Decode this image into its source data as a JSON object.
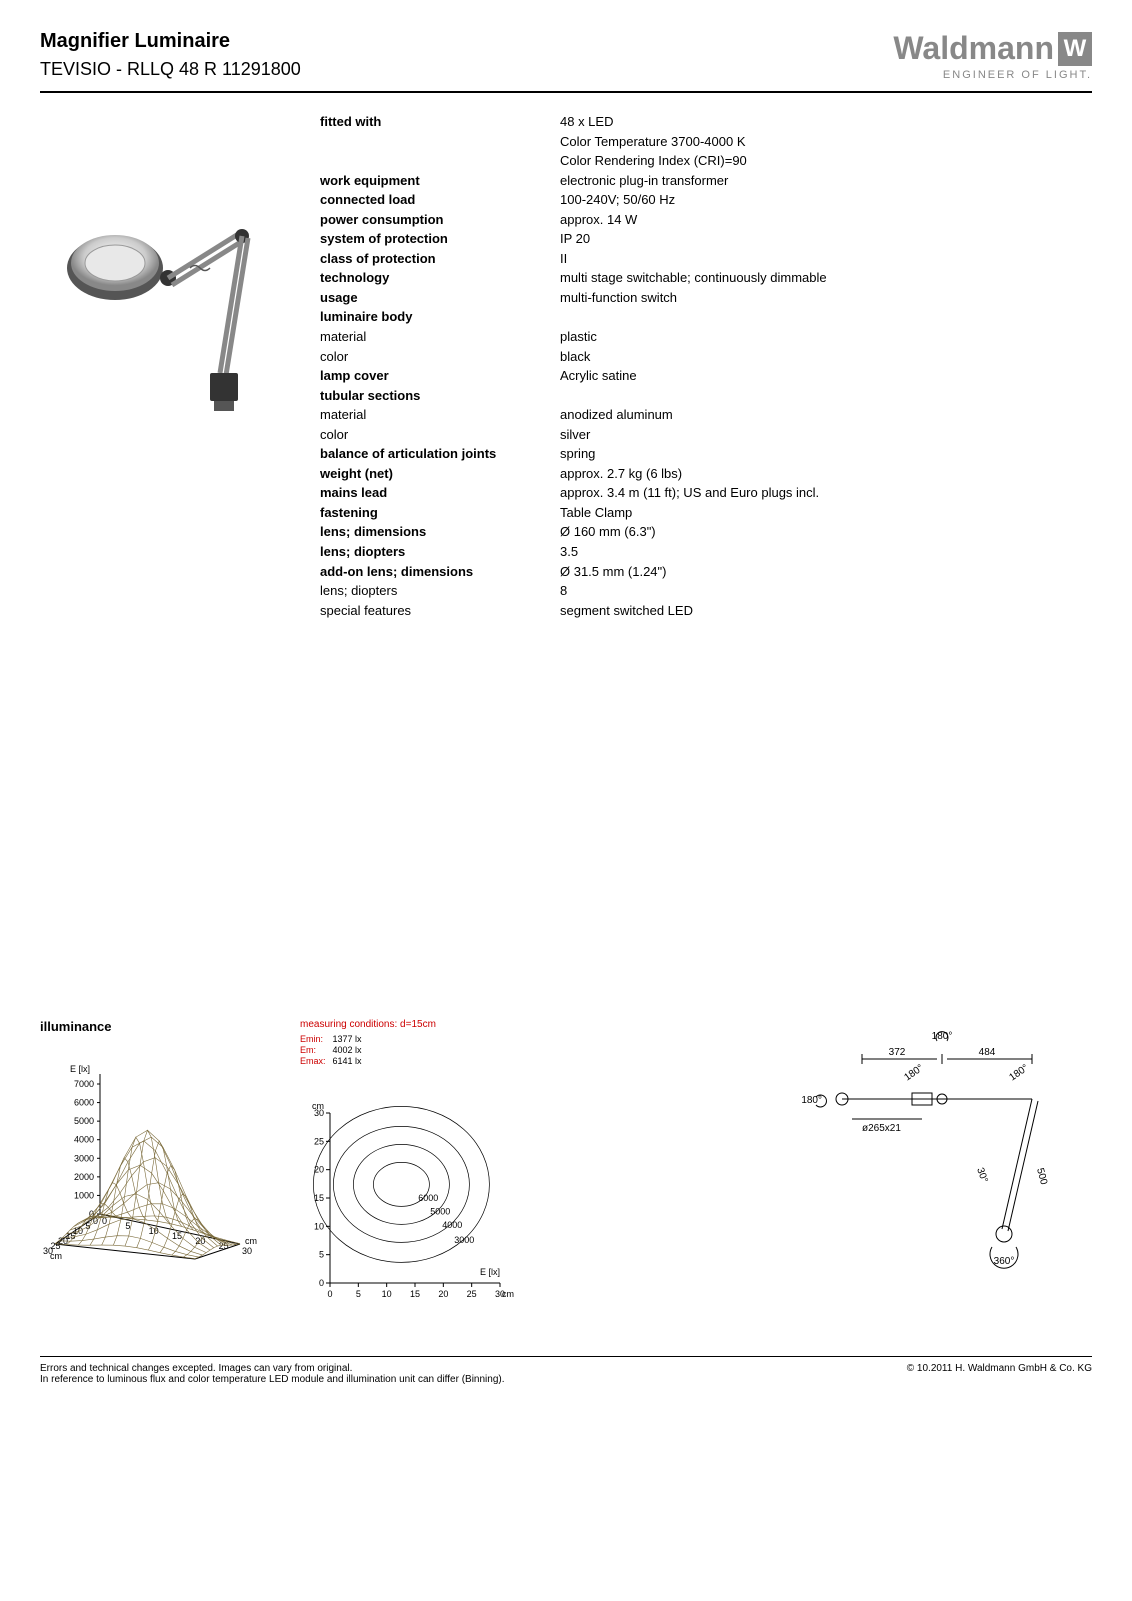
{
  "header": {
    "title": "Magnifier Luminaire",
    "subtitle": "TEVISIO - RLLQ 48 R    11291800"
  },
  "logo": {
    "name": "Waldmann",
    "mark": "W",
    "tagline": "ENGINEER OF LIGHT."
  },
  "specs": [
    {
      "label": "fitted with",
      "bold": true,
      "value": "48 x LED"
    },
    {
      "label": "",
      "bold": false,
      "value": "Color Temperature 3700-4000 K"
    },
    {
      "label": "",
      "bold": false,
      "value": "Color Rendering Index (CRI)=90"
    },
    {
      "label": "work equipment",
      "bold": true,
      "value": "electronic plug-in transformer"
    },
    {
      "label": "connected load",
      "bold": true,
      "value": "100-240V; 50/60 Hz"
    },
    {
      "label": "power consumption",
      "bold": true,
      "value": "approx. 14 W"
    },
    {
      "label": "system of protection",
      "bold": true,
      "value": "IP 20"
    },
    {
      "label": "class of protection",
      "bold": true,
      "value": "II"
    },
    {
      "label": "technology",
      "bold": true,
      "value": "multi stage switchable; continuously dimmable"
    },
    {
      "label": "usage",
      "bold": true,
      "value": "multi-function switch"
    },
    {
      "label": "luminaire body",
      "bold": true,
      "value": ""
    },
    {
      "label": "material",
      "bold": false,
      "value": "plastic"
    },
    {
      "label": "color",
      "bold": false,
      "value": "black"
    },
    {
      "label": "lamp cover",
      "bold": true,
      "value": "Acrylic satine"
    },
    {
      "label": "tubular sections",
      "bold": true,
      "value": ""
    },
    {
      "label": "material",
      "bold": false,
      "value": "anodized aluminum"
    },
    {
      "label": "color",
      "bold": false,
      "value": "silver"
    },
    {
      "label": "balance of articulation joints",
      "bold": true,
      "value": "spring"
    },
    {
      "label": "weight (net)",
      "bold": true,
      "value": "approx. 2.7 kg (6 lbs)"
    },
    {
      "label": "mains lead",
      "bold": true,
      "value": "approx. 3.4 m (11 ft); US and Euro plugs incl."
    },
    {
      "label": "fastening",
      "bold": true,
      "value": "Table Clamp"
    },
    {
      "label": "lens; dimensions",
      "bold": true,
      "value": "Ø 160 mm (6.3\")"
    },
    {
      "label": "lens; diopters",
      "bold": true,
      "value": "3.5"
    },
    {
      "label": "add-on lens; dimensions",
      "bold": true,
      "value": "Ø 31.5 mm (1.24\")"
    },
    {
      "label": "lens; diopters",
      "bold": false,
      "value": "8"
    },
    {
      "label": "special features",
      "bold": false,
      "value": "segment switched LED"
    }
  ],
  "illuminance": {
    "title": "illuminance",
    "chart3d": {
      "ylabel": "E [lx]",
      "yticks": [
        0,
        1000,
        2000,
        3000,
        4000,
        5000,
        6000,
        7000
      ],
      "xticks": [
        0,
        5,
        10,
        15,
        20,
        25,
        30
      ],
      "xunit": "cm",
      "surface_color": "#7a6a3a",
      "axis_color": "#000000"
    },
    "contour": {
      "conditions": "measuring conditions: d=15cm",
      "stats": [
        {
          "k": "Emin:",
          "v": "1377 lx"
        },
        {
          "k": "Em:",
          "v": "4002 lx"
        },
        {
          "k": "Emax:",
          "v": "6141 lx"
        }
      ],
      "yticks": [
        0,
        5,
        10,
        15,
        20,
        25,
        30
      ],
      "yunit": "cm",
      "xticks": [
        0,
        5,
        10,
        15,
        20,
        25,
        30
      ],
      "xunit": "cm",
      "xlabel_r": "E [lx]",
      "levels": [
        3000,
        4000,
        5000,
        6000
      ]
    },
    "drawing": {
      "dim_top_left": "372",
      "dim_top_right": "484",
      "angle_top": "180°",
      "angle_left": "180°",
      "angle_mid1": "180°",
      "angle_mid2": "180°",
      "mount": "ø265x21",
      "arm": "500",
      "arm_angle": "30°",
      "bottom_angle": "360°"
    }
  },
  "footer": {
    "line1": "Errors and technical changes excepted. Images can vary from original.",
    "line2": "In reference to luminous flux and color temperature LED module and illumination unit can differ (Binning).",
    "copyright": "© 10.2011 H. Waldmann GmbH & Co. KG"
  }
}
